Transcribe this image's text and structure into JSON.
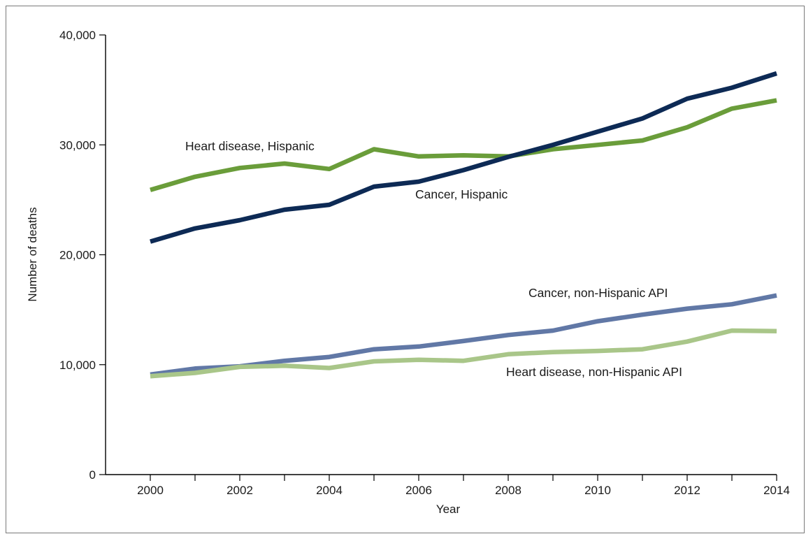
{
  "chart_data": {
    "type": "line",
    "title": "",
    "xlabel": "Year",
    "ylabel": "Number of deaths",
    "x": [
      2000,
      2001,
      2002,
      2003,
      2004,
      2005,
      2006,
      2007,
      2008,
      2009,
      2010,
      2011,
      2012,
      2013,
      2014
    ],
    "x_tick_labels": [
      "2000",
      "2002",
      "2004",
      "2006",
      "2008",
      "2010",
      "2012",
      "2014"
    ],
    "x_ticks": [
      2000,
      2001,
      2002,
      2003,
      2004,
      2005,
      2006,
      2007,
      2008,
      2009,
      2010,
      2011,
      2012,
      2013,
      2014
    ],
    "y_ticks": [
      0,
      10000,
      20000,
      30000,
      40000
    ],
    "y_tick_labels": [
      "0",
      "10,000",
      "20,000",
      "30,000",
      "40,000"
    ],
    "xlim": [
      1999,
      2014
    ],
    "ylim": [
      0,
      40000
    ],
    "grid": false,
    "legend": "none (series labeled directly on plot)",
    "series": [
      {
        "name": "Heart disease, Hispanic",
        "color": "#6a9d3a",
        "values": [
          25900,
          27100,
          27900,
          28300,
          27800,
          29600,
          28950,
          29050,
          28950,
          29600,
          30000,
          30400,
          31600,
          33300,
          34050
        ]
      },
      {
        "name": "Cancer, Hispanic",
        "color": "#0d2a55",
        "values": [
          21200,
          22400,
          23150,
          24100,
          24550,
          26200,
          26650,
          27700,
          28900,
          30000,
          31200,
          32400,
          34200,
          35200,
          36500
        ]
      },
      {
        "name": "Cancer, non-Hispanic API",
        "color": "#6178a6",
        "values": [
          9100,
          9650,
          9850,
          10350,
          10700,
          11400,
          11650,
          12150,
          12700,
          13100,
          13950,
          14550,
          15100,
          15500,
          16300
        ]
      },
      {
        "name": "Heart disease, non-Hispanic API",
        "color": "#a9c689",
        "values": [
          8950,
          9250,
          9800,
          9900,
          9700,
          10300,
          10450,
          10350,
          10950,
          11150,
          11250,
          11400,
          12100,
          13100,
          13050
        ]
      }
    ]
  }
}
